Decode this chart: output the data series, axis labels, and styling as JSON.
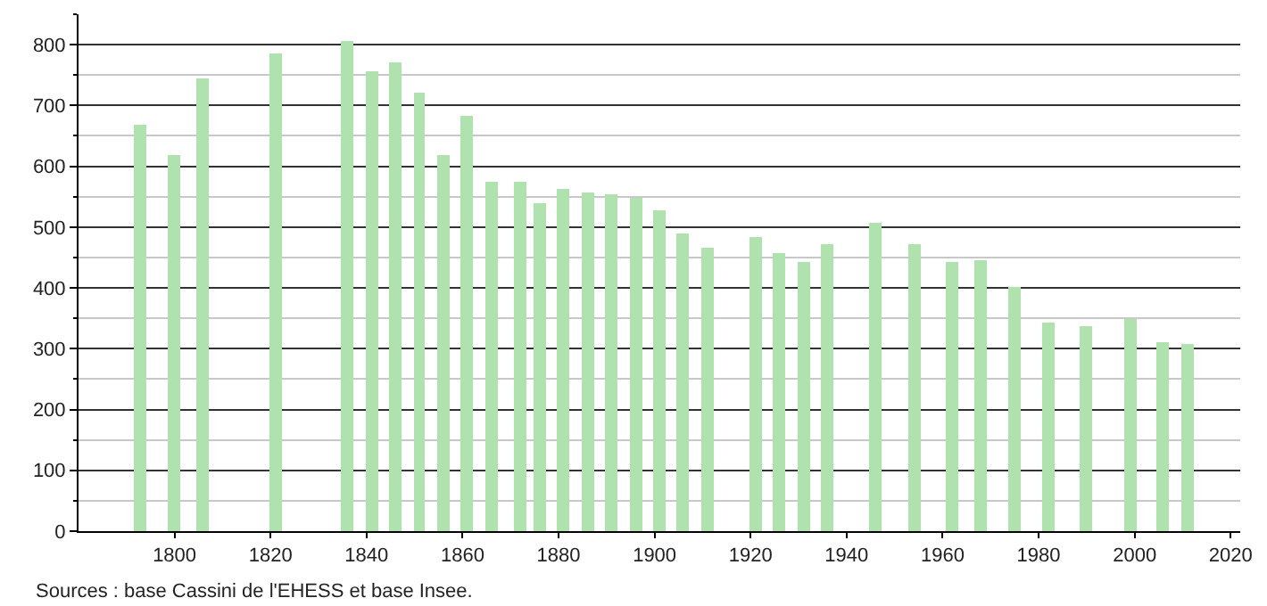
{
  "chart_data": {
    "type": "bar",
    "x": [
      1793,
      1800,
      1806,
      1821,
      1836,
      1841,
      1846,
      1851,
      1856,
      1861,
      1866,
      1872,
      1876,
      1881,
      1886,
      1891,
      1896,
      1901,
      1906,
      1911,
      1921,
      1926,
      1931,
      1936,
      1946,
      1954,
      1962,
      1968,
      1975,
      1982,
      1990,
      1999,
      2006,
      2011
    ],
    "values": [
      668,
      618,
      745,
      785,
      805,
      755,
      770,
      720,
      618,
      682,
      575,
      575,
      540,
      563,
      558,
      553,
      548,
      527,
      490,
      465,
      483,
      457,
      444,
      473,
      508,
      473,
      442,
      445,
      402,
      342,
      336,
      350,
      312,
      308
    ],
    "color": "#b0e2b0",
    "xlim": [
      1780,
      2022
    ],
    "xticks": [
      1800,
      1820,
      1840,
      1860,
      1880,
      1900,
      1920,
      1940,
      1960,
      1980,
      2000,
      2020
    ],
    "ylim": [
      0,
      850
    ],
    "yticks": [
      0,
      {
        "value": 50,
        "label": null
      },
      100,
      {
        "value": 150,
        "label": null
      },
      200,
      {
        "value": 250,
        "label": null
      },
      300,
      {
        "value": 350,
        "label": null
      },
      400,
      {
        "value": 450,
        "label": null
      },
      500,
      {
        "value": 550,
        "label": null
      },
      600,
      {
        "value": 650,
        "label": null
      },
      700,
      {
        "value": 750,
        "label": null
      },
      800,
      {
        "value": 850,
        "label": null
      }
    ],
    "grid": "y",
    "annotations": [
      "Sources : base Cassini de l'EHESS et base Insee."
    ]
  }
}
